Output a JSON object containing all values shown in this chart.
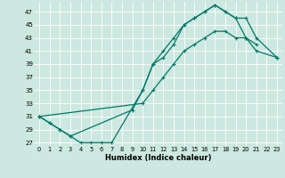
{
  "xlabel": "Humidex (Indice chaleur)",
  "bg_color": "#cce8e0",
  "line_color": "#007868",
  "xlim": [
    -0.5,
    23.5
  ],
  "ylim": [
    26.5,
    48.5
  ],
  "yticks": [
    27,
    29,
    31,
    33,
    35,
    37,
    39,
    41,
    43,
    45,
    47
  ],
  "xticks": [
    0,
    1,
    2,
    3,
    4,
    5,
    6,
    7,
    8,
    9,
    10,
    11,
    12,
    13,
    14,
    15,
    16,
    17,
    18,
    19,
    20,
    21,
    22,
    23
  ],
  "curve_top_x": [
    0,
    1,
    2,
    3,
    4,
    5,
    6,
    7,
    10,
    11,
    12,
    13,
    14,
    15,
    16,
    17,
    18,
    19,
    20,
    21
  ],
  "curve_top_y": [
    31,
    30,
    29,
    28,
    27,
    27,
    27,
    27,
    35,
    39,
    40,
    42,
    45,
    46,
    47,
    48,
    47,
    46,
    43,
    42
  ],
  "curve_mid_x": [
    0,
    1,
    2,
    3,
    9,
    10,
    11,
    12,
    13,
    14,
    15,
    16,
    17,
    18,
    19,
    20,
    21,
    23
  ],
  "curve_mid_y": [
    31,
    30,
    29,
    28,
    32,
    35,
    39,
    41,
    43,
    45,
    46,
    47,
    48,
    47,
    46,
    46,
    43,
    40
  ],
  "curve_bot_x": [
    0,
    10,
    11,
    12,
    13,
    14,
    15,
    16,
    17,
    18,
    19,
    20,
    21,
    23
  ],
  "curve_bot_y": [
    31,
    33,
    35,
    37,
    39,
    41,
    42,
    43,
    44,
    44,
    43,
    43,
    41,
    40
  ]
}
